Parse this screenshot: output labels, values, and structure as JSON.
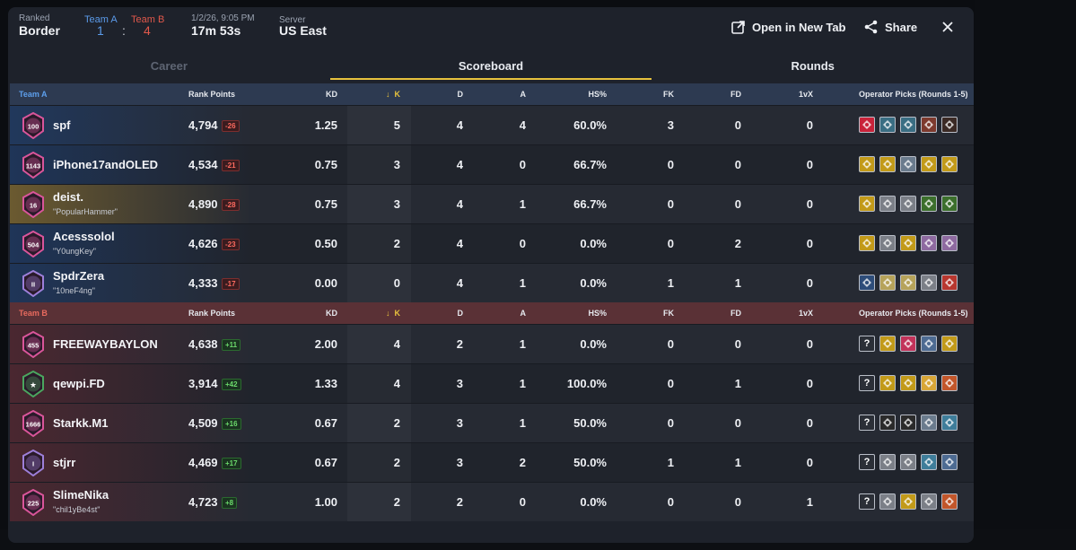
{
  "header": {
    "mode_label": "Ranked",
    "map": "Border",
    "team_a_label": "Team A",
    "team_b_label": "Team B",
    "team_a_score": "1",
    "score_sep": ":",
    "team_b_score": "4",
    "datetime": "1/2/26, 9:05 PM",
    "duration": "17m 53s",
    "server_label": "Server",
    "server": "US East",
    "open_tab_label": "Open in New Tab",
    "share_label": "Share"
  },
  "tabs": [
    {
      "label": "Career"
    },
    {
      "label": "Scoreboard"
    },
    {
      "label": "Rounds"
    }
  ],
  "columns": {
    "rank_points": "Rank Points",
    "kd": "KD",
    "k": "K",
    "d": "D",
    "a": "A",
    "hs": "HS%",
    "fk": "FK",
    "fd": "FD",
    "vx": "1vX",
    "ops": "Operator Picks (Rounds 1-5)",
    "sort_arrow": "↓"
  },
  "team_a": {
    "name": "Team A",
    "players": [
      {
        "name": "spf",
        "alias": "",
        "badge": "100",
        "rp": "4,794",
        "delta": "-26",
        "kd": "1.25",
        "k": "5",
        "d": "4",
        "a": "4",
        "hs": "60.0%",
        "fk": "3",
        "fd": "0",
        "vx": "0",
        "tint": "#21385c",
        "badge_color": "#d9559a",
        "ops": [
          "#c9233a",
          "#3a6e83",
          "#3a6e83",
          "#7d3a2e",
          "#3b2a25"
        ]
      },
      {
        "name": "iPhone17andOLED",
        "alias": "",
        "badge": "1143",
        "rp": "4,534",
        "delta": "-21",
        "kd": "0.75",
        "k": "3",
        "d": "4",
        "a": "0",
        "hs": "66.7%",
        "fk": "0",
        "fd": "0",
        "vx": "0",
        "tint": "#1f3558",
        "badge_color": "#d9559a",
        "ops": [
          "#c29a19",
          "#c29a19",
          "#6a7b8d",
          "#c29a19",
          "#c29a19"
        ]
      },
      {
        "name": "deist.",
        "alias": "\"PopularHammer\"",
        "badge": "16",
        "rp": "4,890",
        "delta": "-28",
        "kd": "0.75",
        "k": "3",
        "d": "4",
        "a": "1",
        "hs": "66.7%",
        "fk": "0",
        "fd": "0",
        "vx": "0",
        "tint": "#6b5a30",
        "badge_color": "#d9559a",
        "ops": [
          "#c29a19",
          "#7b7f87",
          "#7b7f87",
          "#3c6f2c",
          "#3c6f2c"
        ]
      },
      {
        "name": "Acesssolol",
        "alias": "\"Y0ungKey\"",
        "badge": "504",
        "rp": "4,626",
        "delta": "-23",
        "kd": "0.50",
        "k": "2",
        "d": "4",
        "a": "0",
        "hs": "0.0%",
        "fk": "0",
        "fd": "2",
        "vx": "0",
        "tint": "#1f3558",
        "badge_color": "#d9559a",
        "ops": [
          "#c29a19",
          "#7b7f87",
          "#c29a19",
          "#8e6aa0",
          "#8e6aa0"
        ]
      },
      {
        "name": "SpdrZera",
        "alias": "\"10neF4ng\"",
        "badge": "II",
        "rp": "4,333",
        "delta": "-17",
        "kd": "0.00",
        "k": "0",
        "d": "4",
        "a": "1",
        "hs": "0.0%",
        "fk": "1",
        "fd": "1",
        "vx": "0",
        "tint": "#1f3558",
        "badge_color": "#9d7fd9",
        "ops": [
          "#2e4d7a",
          "#b6a35a",
          "#b6a35a",
          "#7b7f87",
          "#b8372f"
        ]
      }
    ]
  },
  "team_b": {
    "name": "Team B",
    "players": [
      {
        "name": "FREEWAYBAYLON",
        "alias": "",
        "badge": "455",
        "rp": "4,638",
        "delta": "+11",
        "kd": "2.00",
        "k": "4",
        "d": "2",
        "a": "1",
        "hs": "0.0%",
        "fk": "0",
        "fd": "0",
        "vx": "0",
        "tint": "#4a2730",
        "badge_color": "#d9559a",
        "ops": [
          "?",
          "#c29a19",
          "#c2335a",
          "#4d6b92",
          "#c29a19"
        ]
      },
      {
        "name": "qewpi.FD",
        "alias": "",
        "badge": "★",
        "rp": "3,914",
        "delta": "+42",
        "kd": "1.33",
        "k": "4",
        "d": "3",
        "a": "1",
        "hs": "100.0%",
        "fk": "0",
        "fd": "1",
        "vx": "0",
        "tint": "#4a2730",
        "badge_color": "#4aa65f",
        "ops": [
          "?",
          "#c29a19",
          "#c29a19",
          "#d8a637",
          "#c2562a"
        ]
      },
      {
        "name": "Starkk.M1",
        "alias": "",
        "badge": "1666",
        "rp": "4,509",
        "delta": "+16",
        "kd": "0.67",
        "k": "2",
        "d": "3",
        "a": "1",
        "hs": "50.0%",
        "fk": "0",
        "fd": "0",
        "vx": "0",
        "tint": "#4a2730",
        "badge_color": "#d9559a",
        "ops": [
          "?",
          "#2b2b2b",
          "#2b2b2b",
          "#6a7b8d",
          "#3e7d9a"
        ]
      },
      {
        "name": "stjrr",
        "alias": "",
        "badge": "I",
        "rp": "4,469",
        "delta": "+17",
        "kd": "0.67",
        "k": "2",
        "d": "3",
        "a": "2",
        "hs": "50.0%",
        "fk": "1",
        "fd": "1",
        "vx": "0",
        "tint": "#4a2730",
        "badge_color": "#9d7fd9",
        "ops": [
          "?",
          "#7b7f87",
          "#7b7f87",
          "#3e7d9a",
          "#4d6b92"
        ]
      },
      {
        "name": "SlimeNika",
        "alias": "\"chil1yBe4st\"",
        "badge": "225",
        "rp": "4,723",
        "delta": "+8",
        "kd": "1.00",
        "k": "2",
        "d": "2",
        "a": "0",
        "hs": "0.0%",
        "fk": "0",
        "fd": "0",
        "vx": "1",
        "tint": "#4a2730",
        "badge_color": "#d9559a",
        "ops": [
          "?",
          "#7b7f87",
          "#c29a19",
          "#7b7f87",
          "#c2562a"
        ]
      }
    ]
  },
  "colors": {
    "team_a": "#5b9bea",
    "team_b": "#e0584b",
    "accent": "#e7c23d"
  }
}
